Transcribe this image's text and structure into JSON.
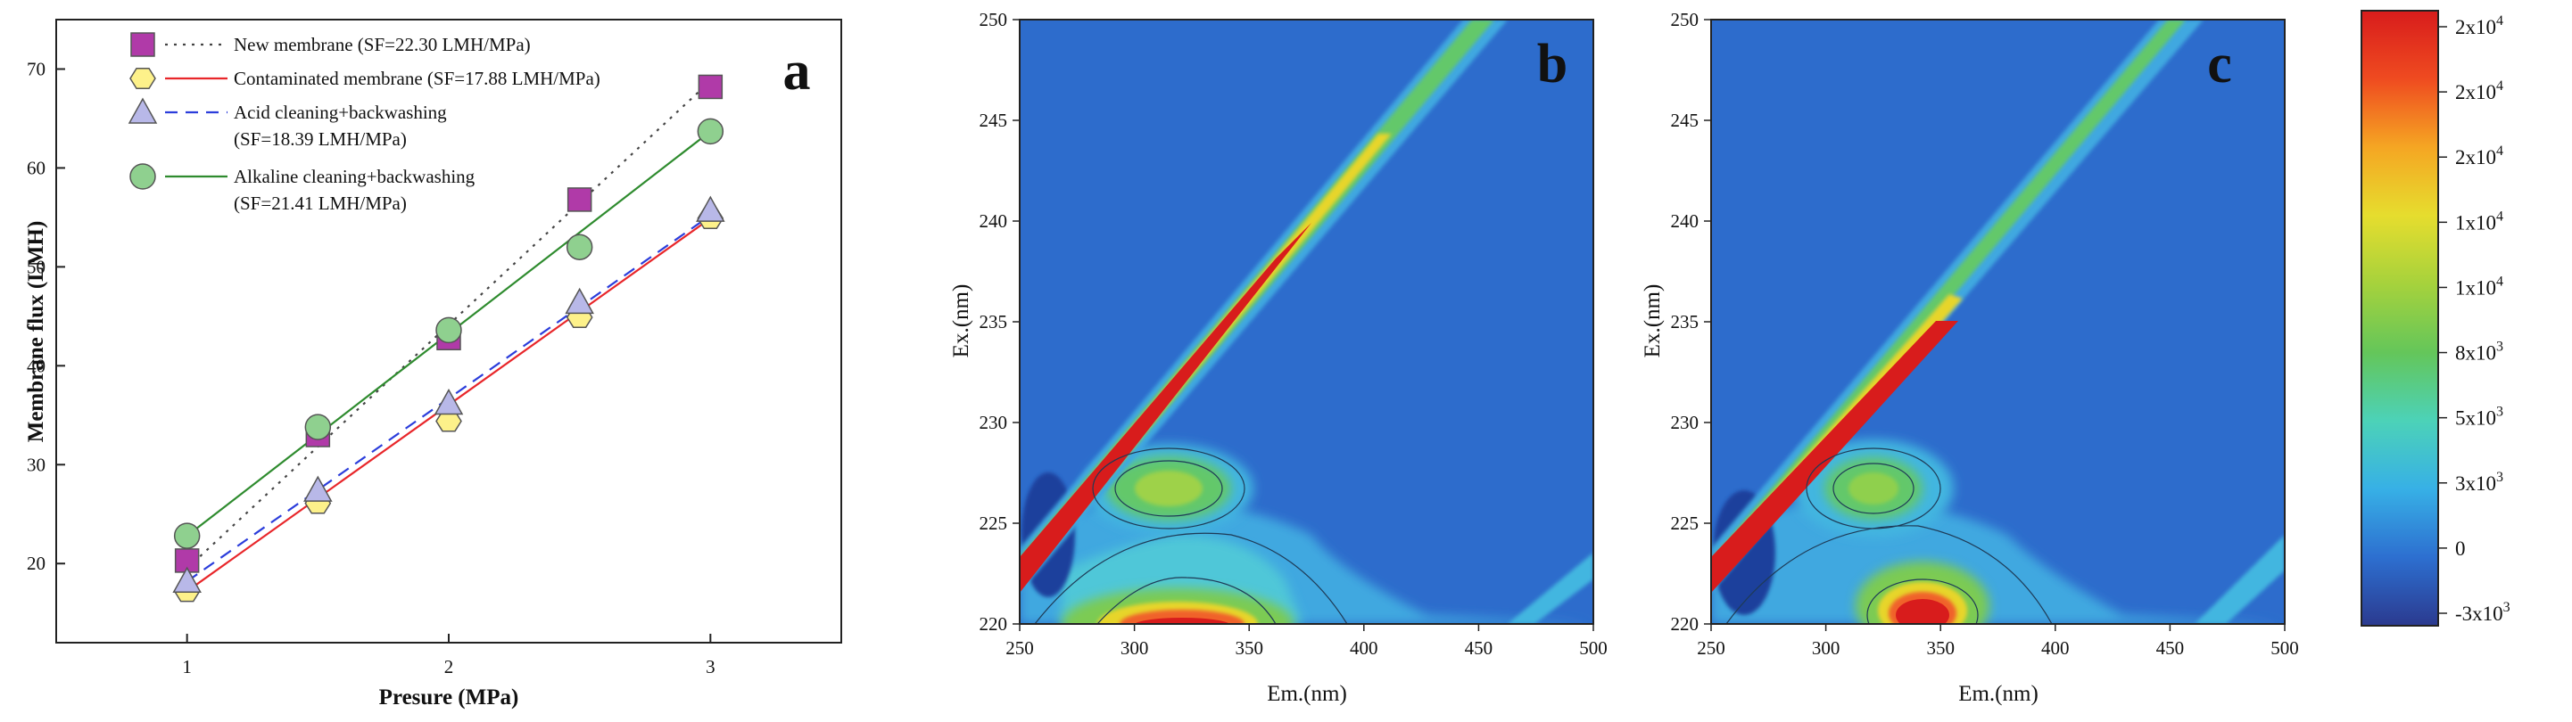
{
  "chart_data": [
    {
      "panel": "a",
      "type": "line",
      "panel_label": "a",
      "xlabel": "Presure (MPa)",
      "ylabel": "Membrane flux (LMH)",
      "xlim": [
        0.5,
        3.5
      ],
      "ylim": [
        12,
        75
      ],
      "xticks": [
        1,
        2,
        3
      ],
      "yticks": [
        20,
        30,
        40,
        50,
        60,
        70
      ],
      "x": [
        1,
        1.5,
        2,
        2.5,
        3
      ],
      "series": [
        {
          "name": "New membrane (SF=22.30 LMH/MPa)",
          "legend_lines": [
            "New membrane (SF=22.30 LMH/MPa)"
          ],
          "values": [
            20.3,
            33.0,
            42.8,
            56.8,
            68.2
          ],
          "fit": [
            19.5,
            68.8
          ],
          "marker": "square",
          "marker_color": "#b03aa8",
          "line_color": "#444444",
          "line_style": "dotted"
        },
        {
          "name": "Contaminated membrane (SF=17.88 LMH/MPa)",
          "legend_lines": [
            "Contaminated membrane (SF=17.88 LMH/MPa)"
          ],
          "values": [
            17.2,
            26.1,
            34.4,
            44.9,
            54.9
          ],
          "fit": [
            17.2,
            54.9
          ],
          "marker": "hexagon",
          "marker_color": "#fdf18a",
          "line_color": "#e8262a",
          "line_style": "solid"
        },
        {
          "name": "Acid cleaning+backwashing (SF=18.39 LMH/MPa)",
          "legend_lines": [
            "Acid cleaning+backwashing",
            "(SF=18.39 LMH/MPa)"
          ],
          "values": [
            18.2,
            27.4,
            36.2,
            46.4,
            55.7
          ],
          "fit": [
            18.2,
            55.2
          ],
          "marker": "triangle",
          "marker_color": "#b8b8e8",
          "line_color": "#2b3ddb",
          "line_style": "dashed"
        },
        {
          "name": "Alkaline cleaning+backwashing (SF=21.41 LMH/MPa)",
          "legend_lines": [
            "Alkaline cleaning+backwashing",
            "(SF=21.41 LMH/MPa)"
          ],
          "values": [
            22.8,
            33.8,
            43.6,
            52.0,
            63.7
          ],
          "fit": [
            22.8,
            63.7
          ],
          "marker": "circle",
          "marker_color": "#8fd08f",
          "line_color": "#2e8b2e",
          "line_style": "solid"
        }
      ]
    },
    {
      "panel": "b",
      "type": "heatmap",
      "panel_label": "b",
      "xlabel": "Em.(nm)",
      "ylabel": "Ex.(nm)",
      "xlim": [
        250,
        500
      ],
      "ylim": [
        220,
        250
      ],
      "xticks": [
        250,
        300,
        350,
        400,
        450,
        500
      ],
      "yticks": [
        220,
        225,
        230,
        235,
        240,
        245,
        250
      ],
      "features": {
        "rayleigh_scatter_peak": 25000,
        "peak_a": {
          "em": 310,
          "ex": 226.5,
          "value": 10000
        },
        "peak_b": {
          "em": 320,
          "ex": 220.5,
          "value": 22000
        }
      }
    },
    {
      "panel": "c",
      "type": "heatmap",
      "panel_label": "c",
      "xlabel": "Em.(nm)",
      "ylabel": "Ex.(nm)",
      "xlim": [
        250,
        500
      ],
      "ylim": [
        220,
        250
      ],
      "xticks": [
        250,
        300,
        350,
        400,
        450,
        500
      ],
      "yticks": [
        220,
        225,
        230,
        235,
        240,
        245,
        250
      ],
      "features": {
        "rayleigh_scatter_peak": 22000,
        "peak_a": {
          "em": 318,
          "ex": 226.8,
          "value": 8000
        },
        "peak_b": {
          "em": 345,
          "ex": 220.5,
          "value": 21000
        }
      }
    }
  ],
  "colorbar": {
    "ticks": [
      {
        "mant": "2x10",
        "exp": "4"
      },
      {
        "mant": "2x10",
        "exp": "4"
      },
      {
        "mant": "2x10",
        "exp": "4"
      },
      {
        "mant": "1x10",
        "exp": "4"
      },
      {
        "mant": "1x10",
        "exp": "4"
      },
      {
        "mant": "8x10",
        "exp": "3"
      },
      {
        "mant": "5x10",
        "exp": "3"
      },
      {
        "mant": "3x10",
        "exp": "3"
      },
      {
        "mant": "0",
        "exp": ""
      },
      {
        "mant": "-3x10",
        "exp": "3"
      }
    ],
    "colors": [
      "#2b3a8f",
      "#2d6fd0",
      "#37b0e6",
      "#4cd2b8",
      "#64c65a",
      "#a6d23c",
      "#e6dd2e",
      "#f5a623",
      "#ef4b20",
      "#d81c1c"
    ]
  }
}
